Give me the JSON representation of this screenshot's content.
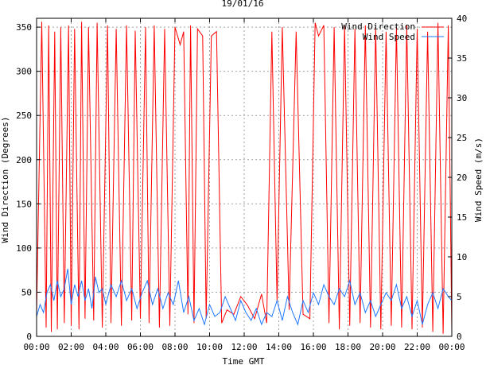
{
  "chart_data": {
    "type": "line",
    "title": "19/01/16",
    "xlabel": "Time GMT",
    "ylabel_left": "Wind Direction (Degrees)",
    "ylabel_right": "Wind Speed (m/s)",
    "x_range_hours": [
      0,
      24
    ],
    "x_ticks": [
      "00:00",
      "02:00",
      "04:00",
      "06:00",
      "08:00",
      "10:00",
      "12:00",
      "14:00",
      "16:00",
      "18:00",
      "20:00",
      "22:00",
      "00:00"
    ],
    "ylim_left": [
      0,
      360
    ],
    "y_ticks_left": [
      0,
      50,
      100,
      150,
      200,
      250,
      300,
      350
    ],
    "ylim_right": [
      0,
      40
    ],
    "y_ticks_right": [
      0,
      5,
      10,
      15,
      20,
      25,
      30,
      35,
      40
    ],
    "grid": true,
    "legend_position": "top-right",
    "series": [
      {
        "name": "Wind Direction",
        "axis": "left",
        "color": "#ff0000",
        "x_hours": [
          0.0,
          0.3,
          0.55,
          0.7,
          0.85,
          1.05,
          1.2,
          1.4,
          1.6,
          1.85,
          2.0,
          2.2,
          2.45,
          2.6,
          2.8,
          3.0,
          3.3,
          3.5,
          3.8,
          4.1,
          4.3,
          4.6,
          4.9,
          5.2,
          5.5,
          5.7,
          6.0,
          6.3,
          6.5,
          6.8,
          7.1,
          7.4,
          7.7,
          8.0,
          8.3,
          8.5,
          8.75,
          8.9,
          9.1,
          9.3,
          9.6,
          9.8,
          10.1,
          10.4,
          10.7,
          11.0,
          11.4,
          11.8,
          12.2,
          12.6,
          13.0,
          13.3,
          13.6,
          13.9,
          14.2,
          14.6,
          15.0,
          15.4,
          15.8,
          16.1,
          16.3,
          16.6,
          16.9,
          17.2,
          17.5,
          17.8,
          18.1,
          18.4,
          18.7,
          19.0,
          19.3,
          19.6,
          19.9,
          20.2,
          20.5,
          20.8,
          21.1,
          21.4,
          21.7,
          22.0,
          22.3,
          22.6,
          22.9,
          23.2,
          23.5,
          23.8,
          24.0
        ],
        "values": [
          25,
          356,
          10,
          352,
          5,
          345,
          8,
          350,
          15,
          352,
          12,
          348,
          8,
          356,
          20,
          350,
          18,
          355,
          10,
          352,
          15,
          348,
          12,
          352,
          18,
          346,
          20,
          350,
          15,
          352,
          10,
          348,
          12,
          350,
          330,
          345,
          25,
          352,
          15,
          348,
          340,
          20,
          340,
          345,
          15,
          30,
          25,
          45,
          35,
          20,
          48,
          15,
          345,
          40,
          350,
          30,
          345,
          25,
          20,
          355,
          340,
          352,
          15,
          350,
          8,
          352,
          12,
          348,
          15,
          352,
          10,
          350,
          8,
          345,
          12,
          350,
          10,
          352,
          8,
          348,
          10,
          345,
          5,
          355,
          3,
          352,
          5
        ]
      },
      {
        "name": "Wind Speed",
        "axis": "right",
        "color": "#1f78ff",
        "x_hours": [
          0.0,
          0.2,
          0.4,
          0.6,
          0.8,
          1.0,
          1.2,
          1.4,
          1.6,
          1.8,
          2.0,
          2.2,
          2.4,
          2.6,
          2.8,
          3.0,
          3.2,
          3.4,
          3.6,
          3.8,
          4.0,
          4.3,
          4.6,
          4.9,
          5.2,
          5.5,
          5.8,
          6.1,
          6.4,
          6.7,
          7.0,
          7.3,
          7.6,
          7.9,
          8.2,
          8.5,
          8.8,
          9.1,
          9.4,
          9.7,
          10.0,
          10.3,
          10.6,
          10.9,
          11.2,
          11.5,
          11.8,
          12.1,
          12.4,
          12.7,
          13.0,
          13.3,
          13.6,
          13.9,
          14.2,
          14.5,
          14.8,
          15.1,
          15.4,
          15.7,
          16.0,
          16.3,
          16.6,
          16.9,
          17.2,
          17.5,
          17.8,
          18.1,
          18.4,
          18.7,
          19.0,
          19.3,
          19.6,
          19.9,
          20.2,
          20.5,
          20.8,
          21.1,
          21.4,
          21.7,
          22.0,
          22.3,
          22.6,
          22.9,
          23.2,
          23.5,
          23.8,
          24.0
        ],
        "values": [
          2.5,
          4,
          3,
          5.5,
          6.5,
          4.5,
          7,
          5,
          6,
          8.5,
          4,
          6.5,
          5,
          7,
          4.5,
          6,
          3.5,
          7.5,
          5.5,
          6,
          4,
          6.5,
          5,
          7,
          4.5,
          6,
          3.5,
          5.5,
          7,
          4,
          6,
          3.5,
          5.5,
          4,
          7,
          3,
          5,
          2,
          3.5,
          1.5,
          4,
          2.5,
          3,
          5,
          3.5,
          2,
          4.5,
          3,
          2,
          3.5,
          1.5,
          3,
          2.5,
          4.5,
          2,
          5,
          3,
          1.5,
          4.5,
          3,
          5.5,
          4,
          6.5,
          5,
          4,
          6,
          5,
          7,
          4,
          5.5,
          3,
          4.5,
          2.5,
          4,
          5.5,
          4.5,
          6.5,
          3.5,
          5,
          2.5,
          4.5,
          1.5,
          4,
          5.5,
          3.5,
          6,
          5,
          4.5
        ]
      }
    ]
  }
}
